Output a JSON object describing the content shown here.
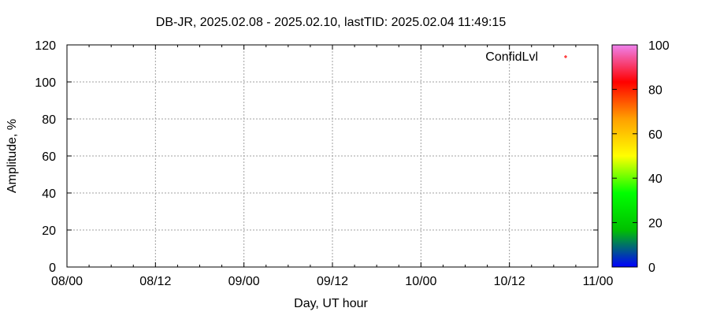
{
  "chart_data": {
    "type": "scatter",
    "title": "DB-JR, 2025.02.08 - 2025.02.10, lastTID: 2025.02.04 11:49:15",
    "xlabel": "Day, UT hour",
    "ylabel": "Amplitude, %",
    "xticks": [
      "08/00",
      "08/12",
      "09/00",
      "09/12",
      "10/00",
      "10/12",
      "11/00"
    ],
    "yticks": [
      0,
      20,
      40,
      60,
      80,
      100,
      120
    ],
    "ylim": [
      0,
      120
    ],
    "grid": true,
    "legend_placement": "top-right",
    "series": [
      {
        "name": "ConfidLvl",
        "values": [],
        "color": "#ff0000",
        "marker": "plus"
      }
    ],
    "colorbar": {
      "range": [
        0,
        100
      ],
      "ticks": [
        0,
        20,
        40,
        60,
        80,
        100
      ],
      "colors": [
        "#0000ff",
        "#00c000",
        "#00ff00",
        "#ffff00",
        "#ffa000",
        "#ff0000",
        "#ee82ee"
      ]
    }
  }
}
